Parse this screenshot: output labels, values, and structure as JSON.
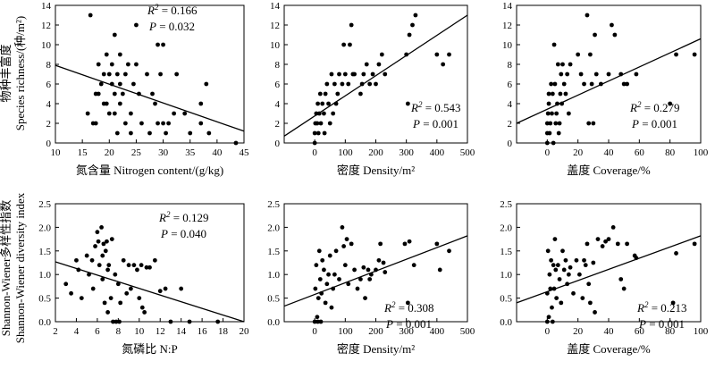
{
  "figure": {
    "y_labels": {
      "top_cn": "物种丰富度",
      "top_en": "Species richness/(种/m²)",
      "bottom_cn": "Shannon-Wiener多样性指数",
      "bottom_en": "Shannon-Wiener diversity index"
    }
  },
  "chart_data": [
    {
      "type": "scatter",
      "xlabel": "氮含量 Nitrogen content/(g/kg)",
      "xlim": [
        10,
        45
      ],
      "ylim": [
        0,
        14
      ],
      "xticks": [
        10,
        15,
        20,
        25,
        30,
        35,
        40,
        45
      ],
      "yticks": [
        0,
        2,
        4,
        6,
        8,
        10,
        12,
        14
      ],
      "r2": "0.166",
      "p": "0.032",
      "trend": [
        [
          10,
          7.9
        ],
        [
          45,
          1.2
        ]
      ],
      "points": [
        [
          16,
          3
        ],
        [
          16.5,
          13
        ],
        [
          17,
          2
        ],
        [
          17.5,
          5
        ],
        [
          17.5,
          2
        ],
        [
          18,
          5
        ],
        [
          18,
          8
        ],
        [
          18.5,
          6
        ],
        [
          19,
          7
        ],
        [
          19,
          4
        ],
        [
          19.5,
          4
        ],
        [
          19.5,
          9
        ],
        [
          20,
          3
        ],
        [
          20,
          7
        ],
        [
          20.5,
          6
        ],
        [
          20.5,
          8
        ],
        [
          21,
          11
        ],
        [
          21,
          5
        ],
        [
          21,
          3
        ],
        [
          21.5,
          7
        ],
        [
          21.5,
          1
        ],
        [
          22,
          9
        ],
        [
          22,
          6
        ],
        [
          22,
          4
        ],
        [
          22.5,
          5
        ],
        [
          23,
          7
        ],
        [
          23,
          2
        ],
        [
          23.5,
          8
        ],
        [
          24,
          1
        ],
        [
          24,
          3
        ],
        [
          24.5,
          6
        ],
        [
          25,
          12
        ],
        [
          25,
          8
        ],
        [
          25.5,
          5
        ],
        [
          26,
          2
        ],
        [
          27,
          7
        ],
        [
          27.5,
          1
        ],
        [
          28,
          5
        ],
        [
          28.5,
          4
        ],
        [
          29,
          10
        ],
        [
          29,
          2
        ],
        [
          29.5,
          7
        ],
        [
          30,
          10
        ],
        [
          30,
          2
        ],
        [
          30.5,
          1
        ],
        [
          31,
          2
        ],
        [
          32,
          3
        ],
        [
          32.5,
          7
        ],
        [
          34,
          3
        ],
        [
          35,
          1
        ],
        [
          37,
          2
        ],
        [
          37,
          4
        ],
        [
          38,
          6
        ],
        [
          38.5,
          1
        ],
        [
          43.5,
          0
        ]
      ]
    },
    {
      "type": "scatter",
      "xlabel": "密度 Density/m²",
      "xlim": [
        -100,
        500
      ],
      "ylim": [
        0,
        14
      ],
      "xticks": [
        0,
        100,
        200,
        300,
        400,
        500
      ],
      "yticks": [
        0,
        2,
        4,
        6,
        8,
        10,
        12,
        14
      ],
      "r2": "0.543",
      "p": "0.001",
      "trend": [
        [
          -100,
          0.7
        ],
        [
          500,
          13.0
        ]
      ],
      "points": [
        [
          0,
          0
        ],
        [
          0,
          1
        ],
        [
          2,
          2
        ],
        [
          5,
          3
        ],
        [
          8,
          2
        ],
        [
          10,
          4
        ],
        [
          12,
          1
        ],
        [
          15,
          3
        ],
        [
          18,
          5
        ],
        [
          20,
          2
        ],
        [
          25,
          4
        ],
        [
          30,
          3
        ],
        [
          32,
          1
        ],
        [
          35,
          5
        ],
        [
          40,
          6
        ],
        [
          45,
          4
        ],
        [
          50,
          2
        ],
        [
          55,
          7
        ],
        [
          60,
          3
        ],
        [
          65,
          6
        ],
        [
          70,
          4
        ],
        [
          75,
          5
        ],
        [
          80,
          7
        ],
        [
          90,
          6
        ],
        [
          95,
          10
        ],
        [
          100,
          7
        ],
        [
          110,
          6
        ],
        [
          115,
          10
        ],
        [
          120,
          12
        ],
        [
          125,
          7
        ],
        [
          130,
          7
        ],
        [
          150,
          5
        ],
        [
          155,
          6
        ],
        [
          160,
          7
        ],
        [
          170,
          8
        ],
        [
          180,
          6
        ],
        [
          190,
          7
        ],
        [
          200,
          6
        ],
        [
          210,
          8
        ],
        [
          220,
          9
        ],
        [
          230,
          7
        ],
        [
          300,
          9
        ],
        [
          305,
          4
        ],
        [
          310,
          11
        ],
        [
          320,
          12
        ],
        [
          330,
          13
        ],
        [
          400,
          9
        ],
        [
          420,
          8
        ],
        [
          440,
          9
        ]
      ]
    },
    {
      "type": "scatter",
      "xlabel": "盖度 Coverage/%",
      "xlim": [
        -20,
        100
      ],
      "ylim": [
        0,
        14
      ],
      "xticks": [
        0,
        20,
        40,
        60,
        80,
        100
      ],
      "yticks": [
        0,
        2,
        4,
        6,
        8,
        10,
        12,
        14
      ],
      "r2": "0.279",
      "p": "0.001",
      "trend": [
        [
          -20,
          2.0
        ],
        [
          100,
          10.6
        ]
      ],
      "points": [
        [
          0,
          0
        ],
        [
          0,
          1
        ],
        [
          0,
          2
        ],
        [
          0.5,
          3
        ],
        [
          1,
          5
        ],
        [
          1,
          4
        ],
        [
          1.5,
          1
        ],
        [
          2,
          2
        ],
        [
          2.5,
          6
        ],
        [
          3,
          3
        ],
        [
          3.5,
          5
        ],
        [
          4,
          0
        ],
        [
          4.5,
          10
        ],
        [
          5,
          6
        ],
        [
          5.5,
          2
        ],
        [
          6,
          3
        ],
        [
          6.5,
          4
        ],
        [
          7,
          8
        ],
        [
          7.5,
          1
        ],
        [
          8,
          2
        ],
        [
          8.5,
          5
        ],
        [
          9,
          7
        ],
        [
          9.5,
          4
        ],
        [
          10,
          8
        ],
        [
          11,
          6
        ],
        [
          12,
          5
        ],
        [
          13,
          7
        ],
        [
          14,
          3
        ],
        [
          15,
          8
        ],
        [
          20,
          9
        ],
        [
          22,
          7
        ],
        [
          24,
          6
        ],
        [
          26,
          13
        ],
        [
          27,
          2
        ],
        [
          28,
          9
        ],
        [
          29,
          6
        ],
        [
          30,
          2
        ],
        [
          31,
          11
        ],
        [
          32,
          7
        ],
        [
          35,
          6
        ],
        [
          40,
          7
        ],
        [
          42,
          12
        ],
        [
          44,
          11
        ],
        [
          48,
          7
        ],
        [
          50,
          6
        ],
        [
          52,
          6
        ],
        [
          58,
          7
        ],
        [
          80,
          4
        ],
        [
          84,
          9
        ],
        [
          96,
          9
        ]
      ]
    },
    {
      "type": "scatter",
      "xlabel": "氮磷比 N:P",
      "xlim": [
        2,
        20
      ],
      "ylim": [
        0,
        2.5
      ],
      "xticks": [
        2,
        4,
        6,
        8,
        10,
        12,
        14,
        16,
        18,
        20
      ],
      "yticks": [
        0,
        0.5,
        1.0,
        1.5,
        2.0,
        2.5
      ],
      "r2": "0.129",
      "p": "0.040",
      "trend": [
        [
          2,
          1.27
        ],
        [
          20,
          0
        ]
      ],
      "points": [
        [
          3,
          0.8
        ],
        [
          3.5,
          0.6
        ],
        [
          4,
          1.3
        ],
        [
          4.2,
          1.1
        ],
        [
          4.5,
          0.5
        ],
        [
          5,
          1.4
        ],
        [
          5.2,
          1.0
        ],
        [
          5.5,
          1.3
        ],
        [
          5.6,
          0.7
        ],
        [
          5.8,
          1.6
        ],
        [
          6,
          1.9
        ],
        [
          6.1,
          1.7
        ],
        [
          6.2,
          1.2
        ],
        [
          6.4,
          2.0
        ],
        [
          6.5,
          1.4
        ],
        [
          6.5,
          0.9
        ],
        [
          6.6,
          1.65
        ],
        [
          6.7,
          0.4
        ],
        [
          6.8,
          1.5
        ],
        [
          6.9,
          1.7
        ],
        [
          7,
          1.1
        ],
        [
          7,
          0.2
        ],
        [
          7.1,
          1.2
        ],
        [
          7.3,
          0.5
        ],
        [
          7.4,
          1.75
        ],
        [
          7.5,
          0
        ],
        [
          7.7,
          1.0
        ],
        [
          7.8,
          0
        ],
        [
          8,
          0.8
        ],
        [
          8.1,
          0
        ],
        [
          8.2,
          0.4
        ],
        [
          8.5,
          1.3
        ],
        [
          8.8,
          0.6
        ],
        [
          9,
          1.2
        ],
        [
          9.2,
          0.7
        ],
        [
          9.5,
          1.2
        ],
        [
          9.8,
          1.1
        ],
        [
          10,
          0.5
        ],
        [
          10.2,
          1.2
        ],
        [
          10.3,
          0.3
        ],
        [
          10.5,
          0.2
        ],
        [
          10.7,
          1.15
        ],
        [
          11,
          1.15
        ],
        [
          11.5,
          1.3
        ],
        [
          12,
          0.65
        ],
        [
          12.5,
          0.7
        ],
        [
          13,
          0
        ],
        [
          14,
          0.7
        ],
        [
          14.8,
          0
        ],
        [
          17.5,
          0
        ]
      ]
    },
    {
      "type": "scatter",
      "xlabel": "密度 Density/m²",
      "xlim": [
        -100,
        500
      ],
      "ylim": [
        0,
        2.5
      ],
      "xticks": [
        0,
        100,
        200,
        300,
        400,
        500
      ],
      "yticks": [
        0,
        0.5,
        1.0,
        1.5,
        2.0,
        2.5
      ],
      "r2": "0.308",
      "p": "0.001",
      "trend": [
        [
          -100,
          0.33
        ],
        [
          500,
          1.82
        ]
      ],
      "points": [
        [
          0,
          0
        ],
        [
          2,
          0.7
        ],
        [
          5,
          1.2
        ],
        [
          8,
          0.1
        ],
        [
          10,
          0
        ],
        [
          12,
          0.5
        ],
        [
          15,
          1.5
        ],
        [
          18,
          0.9
        ],
        [
          20,
          0
        ],
        [
          22,
          0.6
        ],
        [
          25,
          1.3
        ],
        [
          30,
          1.1
        ],
        [
          35,
          0.4
        ],
        [
          40,
          0.8
        ],
        [
          45,
          1.0
        ],
        [
          50,
          1.4
        ],
        [
          55,
          0.3
        ],
        [
          60,
          0.7
        ],
        [
          65,
          1.0
        ],
        [
          70,
          1.5
        ],
        [
          80,
          0.9
        ],
        [
          90,
          2.0
        ],
        [
          95,
          1.6
        ],
        [
          100,
          1.2
        ],
        [
          105,
          1.75
        ],
        [
          110,
          0.8
        ],
        [
          120,
          1.65
        ],
        [
          130,
          1.1
        ],
        [
          140,
          0.7
        ],
        [
          150,
          0.9
        ],
        [
          160,
          1.15
        ],
        [
          165,
          0.5
        ],
        [
          175,
          1.1
        ],
        [
          180,
          0.9
        ],
        [
          185,
          1.0
        ],
        [
          200,
          1.1
        ],
        [
          210,
          1.3
        ],
        [
          215,
          1.65
        ],
        [
          225,
          1.25
        ],
        [
          230,
          1.05
        ],
        [
          295,
          1.65
        ],
        [
          305,
          0.4
        ],
        [
          310,
          1.7
        ],
        [
          325,
          1.2
        ],
        [
          400,
          1.65
        ],
        [
          410,
          1.1
        ],
        [
          440,
          1.5
        ]
      ]
    },
    {
      "type": "scatter",
      "xlabel": "盖度 Coverage/%",
      "xlim": [
        -20,
        100
      ],
      "ylim": [
        0,
        2.5
      ],
      "xticks": [
        0,
        20,
        40,
        60,
        80,
        100
      ],
      "yticks": [
        0,
        0.5,
        1.0,
        1.5,
        2.0,
        2.5
      ],
      "r2": "0.213",
      "p": "0.001",
      "trend": [
        [
          -20,
          0.4
        ],
        [
          100,
          1.82
        ]
      ],
      "points": [
        [
          0,
          0
        ],
        [
          0,
          0.6
        ],
        [
          0.5,
          1.5
        ],
        [
          1,
          0.1
        ],
        [
          1.5,
          1.0
        ],
        [
          2,
          0.7
        ],
        [
          2.5,
          1.3
        ],
        [
          3,
          0.3
        ],
        [
          3.5,
          0
        ],
        [
          4,
          1.2
        ],
        [
          4.5,
          0.7
        ],
        [
          5,
          1.75
        ],
        [
          5.5,
          1.1
        ],
        [
          6,
          0.5
        ],
        [
          7,
          1.2
        ],
        [
          8,
          0.9
        ],
        [
          9,
          0.4
        ],
        [
          10,
          1.5
        ],
        [
          11,
          1.1
        ],
        [
          12,
          1.3
        ],
        [
          13,
          0.8
        ],
        [
          14,
          1.0
        ],
        [
          15,
          1.15
        ],
        [
          17,
          0.6
        ],
        [
          19,
          1.3
        ],
        [
          21,
          1.0
        ],
        [
          23,
          0.5
        ],
        [
          24,
          1.3
        ],
        [
          25,
          1.2
        ],
        [
          26,
          1.65
        ],
        [
          27,
          0.8
        ],
        [
          28,
          0.4
        ],
        [
          30,
          1.25
        ],
        [
          31,
          0.2
        ],
        [
          33,
          1.75
        ],
        [
          36,
          1.6
        ],
        [
          38,
          1.7
        ],
        [
          40,
          1.75
        ],
        [
          43,
          2.0
        ],
        [
          46,
          1.65
        ],
        [
          48,
          0.9
        ],
        [
          50,
          0.7
        ],
        [
          52,
          1.65
        ],
        [
          57,
          1.4
        ],
        [
          58,
          1.35
        ],
        [
          82,
          0.4
        ],
        [
          84,
          1.45
        ],
        [
          96,
          1.65
        ]
      ]
    }
  ]
}
